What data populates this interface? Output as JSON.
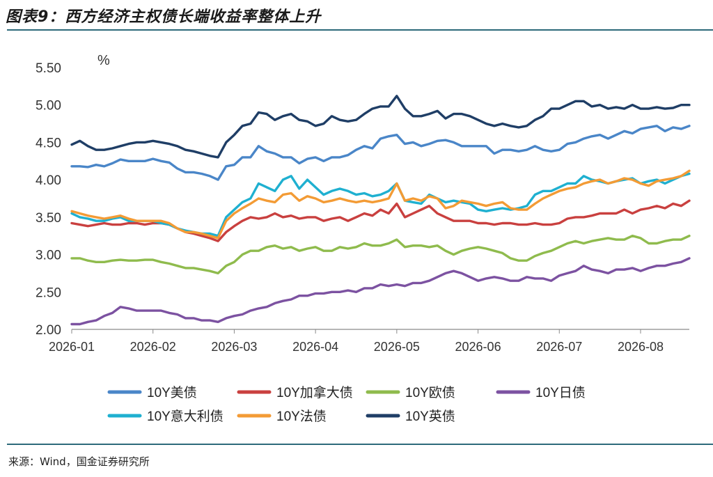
{
  "figure": {
    "title": "图表9：西方经济主权债长端收益率整体上升",
    "source": "来源：Wind，国金证券研究所"
  },
  "chart_data": {
    "type": "line",
    "ylabel": "%",
    "ylim": [
      2.0,
      5.5
    ],
    "yticks": [
      "2.00",
      "2.50",
      "3.00",
      "3.50",
      "4.00",
      "4.50",
      "5.00",
      "5.50"
    ],
    "xlim": [
      0,
      7.6
    ],
    "xticks": [
      "2026-01",
      "2026-02",
      "2026-03",
      "2026-04",
      "2026-05",
      "2026-06",
      "2026-07",
      "2026-08"
    ],
    "grid": false,
    "legend_position": "bottom",
    "series": [
      {
        "name": "10Y美债",
        "color": "#4a86c8",
        "x": [
          0,
          0.1,
          0.2,
          0.3,
          0.4,
          0.5,
          0.6,
          0.7,
          0.8,
          0.9,
          1.0,
          1.1,
          1.2,
          1.3,
          1.4,
          1.5,
          1.6,
          1.7,
          1.8,
          1.9,
          2.0,
          2.1,
          2.2,
          2.3,
          2.4,
          2.5,
          2.6,
          2.7,
          2.8,
          2.9,
          3.0,
          3.1,
          3.2,
          3.3,
          3.4,
          3.5,
          3.6,
          3.7,
          3.8,
          3.9,
          4.0,
          4.1,
          4.2,
          4.3,
          4.4,
          4.5,
          4.6,
          4.7,
          4.8,
          4.9,
          5.0,
          5.1,
          5.2,
          5.3,
          5.4,
          5.5,
          5.6,
          5.7,
          5.8,
          5.9,
          6.0,
          6.1,
          6.2,
          6.3,
          6.4,
          6.5,
          6.6,
          6.7,
          6.8,
          6.9,
          7.0,
          7.1,
          7.2,
          7.3,
          7.4,
          7.5,
          7.6
        ],
        "y": [
          4.18,
          4.18,
          4.17,
          4.2,
          4.18,
          4.22,
          4.27,
          4.25,
          4.25,
          4.25,
          4.28,
          4.25,
          4.23,
          4.15,
          4.1,
          4.1,
          4.08,
          4.05,
          4.0,
          4.18,
          4.2,
          4.3,
          4.3,
          4.45,
          4.38,
          4.35,
          4.3,
          4.3,
          4.22,
          4.28,
          4.3,
          4.25,
          4.3,
          4.3,
          4.33,
          4.4,
          4.45,
          4.42,
          4.55,
          4.58,
          4.6,
          4.48,
          4.5,
          4.45,
          4.48,
          4.52,
          4.53,
          4.5,
          4.45,
          4.45,
          4.45,
          4.45,
          4.35,
          4.4,
          4.4,
          4.38,
          4.4,
          4.45,
          4.4,
          4.38,
          4.4,
          4.48,
          4.5,
          4.55,
          4.58,
          4.6,
          4.55,
          4.6,
          4.65,
          4.62,
          4.68,
          4.7,
          4.72,
          4.65,
          4.7,
          4.68,
          4.72
        ]
      },
      {
        "name": "10Y加拿大债",
        "color": "#c9403f",
        "x": [
          0,
          0.1,
          0.2,
          0.3,
          0.4,
          0.5,
          0.6,
          0.7,
          0.8,
          0.9,
          1.0,
          1.1,
          1.2,
          1.3,
          1.4,
          1.5,
          1.6,
          1.7,
          1.8,
          1.9,
          2.0,
          2.1,
          2.2,
          2.3,
          2.4,
          2.5,
          2.6,
          2.7,
          2.8,
          2.9,
          3.0,
          3.1,
          3.2,
          3.3,
          3.4,
          3.5,
          3.6,
          3.7,
          3.8,
          3.9,
          4.0,
          4.1,
          4.2,
          4.3,
          4.4,
          4.5,
          4.6,
          4.7,
          4.8,
          4.9,
          5.0,
          5.1,
          5.2,
          5.3,
          5.4,
          5.5,
          5.6,
          5.7,
          5.8,
          5.9,
          6.0,
          6.1,
          6.2,
          6.3,
          6.4,
          6.5,
          6.6,
          6.7,
          6.8,
          6.9,
          7.0,
          7.1,
          7.2,
          7.3,
          7.4,
          7.5,
          7.6
        ],
        "y": [
          3.42,
          3.4,
          3.38,
          3.4,
          3.42,
          3.4,
          3.4,
          3.42,
          3.42,
          3.4,
          3.42,
          3.42,
          3.4,
          3.35,
          3.3,
          3.28,
          3.25,
          3.22,
          3.18,
          3.3,
          3.38,
          3.45,
          3.5,
          3.48,
          3.5,
          3.55,
          3.5,
          3.52,
          3.48,
          3.5,
          3.5,
          3.45,
          3.48,
          3.5,
          3.45,
          3.5,
          3.55,
          3.52,
          3.6,
          3.55,
          3.68,
          3.5,
          3.55,
          3.6,
          3.65,
          3.55,
          3.5,
          3.45,
          3.45,
          3.45,
          3.42,
          3.42,
          3.4,
          3.42,
          3.42,
          3.4,
          3.4,
          3.42,
          3.4,
          3.4,
          3.42,
          3.48,
          3.5,
          3.5,
          3.52,
          3.55,
          3.55,
          3.55,
          3.6,
          3.55,
          3.6,
          3.62,
          3.65,
          3.62,
          3.68,
          3.65,
          3.72
        ]
      },
      {
        "name": "10Y欧债",
        "color": "#8fbb4d",
        "x": [
          0,
          0.1,
          0.2,
          0.3,
          0.4,
          0.5,
          0.6,
          0.7,
          0.8,
          0.9,
          1.0,
          1.1,
          1.2,
          1.3,
          1.4,
          1.5,
          1.6,
          1.7,
          1.8,
          1.9,
          2.0,
          2.1,
          2.2,
          2.3,
          2.4,
          2.5,
          2.6,
          2.7,
          2.8,
          2.9,
          3.0,
          3.1,
          3.2,
          3.3,
          3.4,
          3.5,
          3.6,
          3.7,
          3.8,
          3.9,
          4.0,
          4.1,
          4.2,
          4.3,
          4.4,
          4.5,
          4.6,
          4.7,
          4.8,
          4.9,
          5.0,
          5.1,
          5.2,
          5.3,
          5.4,
          5.5,
          5.6,
          5.7,
          5.8,
          5.9,
          6.0,
          6.1,
          6.2,
          6.3,
          6.4,
          6.5,
          6.6,
          6.7,
          6.8,
          6.9,
          7.0,
          7.1,
          7.2,
          7.3,
          7.4,
          7.5,
          7.6
        ],
        "y": [
          2.95,
          2.95,
          2.92,
          2.9,
          2.9,
          2.92,
          2.93,
          2.92,
          2.92,
          2.93,
          2.93,
          2.9,
          2.88,
          2.85,
          2.82,
          2.82,
          2.8,
          2.78,
          2.75,
          2.85,
          2.9,
          3.0,
          3.05,
          3.05,
          3.1,
          3.12,
          3.08,
          3.1,
          3.05,
          3.08,
          3.1,
          3.05,
          3.05,
          3.1,
          3.08,
          3.1,
          3.15,
          3.12,
          3.12,
          3.15,
          3.2,
          3.1,
          3.12,
          3.12,
          3.1,
          3.12,
          3.05,
          3.0,
          3.05,
          3.08,
          3.1,
          3.08,
          3.05,
          3.02,
          2.95,
          2.92,
          2.92,
          2.98,
          3.02,
          3.05,
          3.1,
          3.15,
          3.18,
          3.15,
          3.18,
          3.2,
          3.22,
          3.2,
          3.2,
          3.25,
          3.22,
          3.15,
          3.15,
          3.18,
          3.2,
          3.2,
          3.25
        ]
      },
      {
        "name": "10Y日债",
        "color": "#7c52a1",
        "x": [
          0,
          0.1,
          0.2,
          0.3,
          0.4,
          0.5,
          0.6,
          0.7,
          0.8,
          0.9,
          1.0,
          1.1,
          1.2,
          1.3,
          1.4,
          1.5,
          1.6,
          1.7,
          1.8,
          1.9,
          2.0,
          2.1,
          2.2,
          2.3,
          2.4,
          2.5,
          2.6,
          2.7,
          2.8,
          2.9,
          3.0,
          3.1,
          3.2,
          3.3,
          3.4,
          3.5,
          3.6,
          3.7,
          3.8,
          3.9,
          4.0,
          4.1,
          4.2,
          4.3,
          4.4,
          4.5,
          4.6,
          4.7,
          4.8,
          4.9,
          5.0,
          5.1,
          5.2,
          5.3,
          5.4,
          5.5,
          5.6,
          5.7,
          5.8,
          5.9,
          6.0,
          6.1,
          6.2,
          6.3,
          6.4,
          6.5,
          6.6,
          6.7,
          6.8,
          6.9,
          7.0,
          7.1,
          7.2,
          7.3,
          7.4,
          7.5,
          7.6
        ],
        "y": [
          2.07,
          2.07,
          2.1,
          2.12,
          2.18,
          2.22,
          2.3,
          2.28,
          2.25,
          2.25,
          2.25,
          2.25,
          2.22,
          2.2,
          2.15,
          2.15,
          2.12,
          2.12,
          2.1,
          2.15,
          2.18,
          2.2,
          2.25,
          2.28,
          2.3,
          2.35,
          2.38,
          2.4,
          2.45,
          2.45,
          2.48,
          2.48,
          2.5,
          2.5,
          2.52,
          2.5,
          2.55,
          2.55,
          2.6,
          2.58,
          2.6,
          2.58,
          2.62,
          2.62,
          2.65,
          2.7,
          2.75,
          2.78,
          2.75,
          2.7,
          2.65,
          2.68,
          2.7,
          2.68,
          2.65,
          2.65,
          2.7,
          2.68,
          2.68,
          2.65,
          2.72,
          2.75,
          2.78,
          2.85,
          2.8,
          2.78,
          2.75,
          2.8,
          2.8,
          2.82,
          2.78,
          2.82,
          2.85,
          2.85,
          2.88,
          2.9,
          2.95
        ]
      },
      {
        "name": "10Y意大利债",
        "color": "#1fb0d0",
        "x": [
          0,
          0.1,
          0.2,
          0.3,
          0.4,
          0.5,
          0.6,
          0.7,
          0.8,
          0.9,
          1.0,
          1.1,
          1.2,
          1.3,
          1.4,
          1.5,
          1.6,
          1.7,
          1.8,
          1.9,
          2.0,
          2.1,
          2.2,
          2.3,
          2.4,
          2.5,
          2.6,
          2.7,
          2.8,
          2.9,
          3.0,
          3.1,
          3.2,
          3.3,
          3.4,
          3.5,
          3.6,
          3.7,
          3.8,
          3.9,
          4.0,
          4.1,
          4.2,
          4.3,
          4.4,
          4.5,
          4.6,
          4.7,
          4.8,
          4.9,
          5.0,
          5.1,
          5.2,
          5.3,
          5.4,
          5.5,
          5.6,
          5.7,
          5.8,
          5.9,
          6.0,
          6.1,
          6.2,
          6.3,
          6.4,
          6.5,
          6.6,
          6.7,
          6.8,
          6.9,
          7.0,
          7.1,
          7.2,
          7.3,
          7.4,
          7.5,
          7.6
        ],
        "y": [
          3.55,
          3.5,
          3.48,
          3.45,
          3.45,
          3.48,
          3.5,
          3.45,
          3.45,
          3.45,
          3.45,
          3.42,
          3.4,
          3.35,
          3.32,
          3.3,
          3.28,
          3.28,
          3.25,
          3.5,
          3.6,
          3.7,
          3.75,
          3.95,
          3.9,
          3.85,
          4.0,
          4.05,
          3.88,
          4.0,
          3.9,
          3.8,
          3.85,
          3.88,
          3.85,
          3.8,
          3.82,
          3.78,
          3.8,
          3.85,
          3.95,
          3.72,
          3.7,
          3.68,
          3.8,
          3.75,
          3.7,
          3.72,
          3.7,
          3.68,
          3.6,
          3.58,
          3.6,
          3.62,
          3.6,
          3.62,
          3.65,
          3.8,
          3.85,
          3.85,
          3.9,
          3.95,
          3.95,
          4.05,
          4.0,
          3.98,
          3.95,
          3.98,
          4.0,
          4.02,
          3.95,
          3.98,
          4.0,
          3.95,
          4.0,
          4.05,
          4.08
        ]
      },
      {
        "name": "10Y法债",
        "color": "#f39b35",
        "x": [
          0,
          0.1,
          0.2,
          0.3,
          0.4,
          0.5,
          0.6,
          0.7,
          0.8,
          0.9,
          1.0,
          1.1,
          1.2,
          1.3,
          1.4,
          1.5,
          1.6,
          1.7,
          1.8,
          1.9,
          2.0,
          2.1,
          2.2,
          2.3,
          2.4,
          2.5,
          2.6,
          2.7,
          2.8,
          2.9,
          3.0,
          3.1,
          3.2,
          3.3,
          3.4,
          3.5,
          3.6,
          3.7,
          3.8,
          3.9,
          4.0,
          4.1,
          4.2,
          4.3,
          4.4,
          4.5,
          4.6,
          4.7,
          4.8,
          4.9,
          5.0,
          5.1,
          5.2,
          5.3,
          5.4,
          5.5,
          5.6,
          5.7,
          5.8,
          5.9,
          6.0,
          6.1,
          6.2,
          6.3,
          6.4,
          6.5,
          6.6,
          6.7,
          6.8,
          6.9,
          7.0,
          7.1,
          7.2,
          7.3,
          7.4,
          7.5,
          7.6
        ],
        "y": [
          3.58,
          3.55,
          3.52,
          3.5,
          3.48,
          3.5,
          3.52,
          3.48,
          3.45,
          3.45,
          3.45,
          3.45,
          3.42,
          3.35,
          3.3,
          3.3,
          3.28,
          3.25,
          3.22,
          3.45,
          3.55,
          3.62,
          3.68,
          3.75,
          3.72,
          3.7,
          3.8,
          3.82,
          3.72,
          3.78,
          3.75,
          3.7,
          3.72,
          3.75,
          3.72,
          3.7,
          3.72,
          3.7,
          3.72,
          3.75,
          3.95,
          3.72,
          3.75,
          3.72,
          3.78,
          3.75,
          3.62,
          3.65,
          3.72,
          3.7,
          3.68,
          3.65,
          3.68,
          3.7,
          3.62,
          3.6,
          3.6,
          3.68,
          3.75,
          3.8,
          3.85,
          3.88,
          3.9,
          3.95,
          3.98,
          4.0,
          3.95,
          3.98,
          4.02,
          4.0,
          3.95,
          3.92,
          3.98,
          4.0,
          4.02,
          4.05,
          4.12
        ]
      },
      {
        "name": "10Y英债",
        "color": "#1f3e66",
        "x": [
          0,
          0.1,
          0.2,
          0.3,
          0.4,
          0.5,
          0.6,
          0.7,
          0.8,
          0.9,
          1.0,
          1.1,
          1.2,
          1.3,
          1.4,
          1.5,
          1.6,
          1.7,
          1.8,
          1.9,
          2.0,
          2.1,
          2.2,
          2.3,
          2.4,
          2.5,
          2.6,
          2.7,
          2.8,
          2.9,
          3.0,
          3.1,
          3.2,
          3.3,
          3.4,
          3.5,
          3.6,
          3.7,
          3.8,
          3.9,
          4.0,
          4.1,
          4.2,
          4.3,
          4.4,
          4.5,
          4.6,
          4.7,
          4.8,
          4.9,
          5.0,
          5.1,
          5.2,
          5.3,
          5.4,
          5.5,
          5.6,
          5.7,
          5.8,
          5.9,
          6.0,
          6.1,
          6.2,
          6.3,
          6.4,
          6.5,
          6.6,
          6.7,
          6.8,
          6.9,
          7.0,
          7.1,
          7.2,
          7.3,
          7.4,
          7.5,
          7.6
        ],
        "y": [
          4.47,
          4.52,
          4.45,
          4.4,
          4.4,
          4.42,
          4.45,
          4.48,
          4.5,
          4.5,
          4.52,
          4.5,
          4.48,
          4.45,
          4.4,
          4.38,
          4.35,
          4.32,
          4.3,
          4.5,
          4.6,
          4.72,
          4.75,
          4.9,
          4.88,
          4.8,
          4.85,
          4.88,
          4.8,
          4.78,
          4.72,
          4.75,
          4.85,
          4.8,
          4.78,
          4.8,
          4.88,
          4.95,
          4.98,
          4.98,
          5.12,
          4.95,
          4.85,
          4.85,
          4.88,
          4.92,
          4.82,
          4.88,
          4.88,
          4.85,
          4.8,
          4.75,
          4.72,
          4.75,
          4.72,
          4.7,
          4.72,
          4.8,
          4.85,
          4.95,
          4.95,
          5.0,
          5.05,
          5.05,
          4.98,
          5.0,
          4.95,
          4.97,
          4.95,
          5.0,
          4.95,
          4.95,
          4.97,
          4.95,
          4.96,
          5.0,
          5.0
        ]
      }
    ]
  }
}
